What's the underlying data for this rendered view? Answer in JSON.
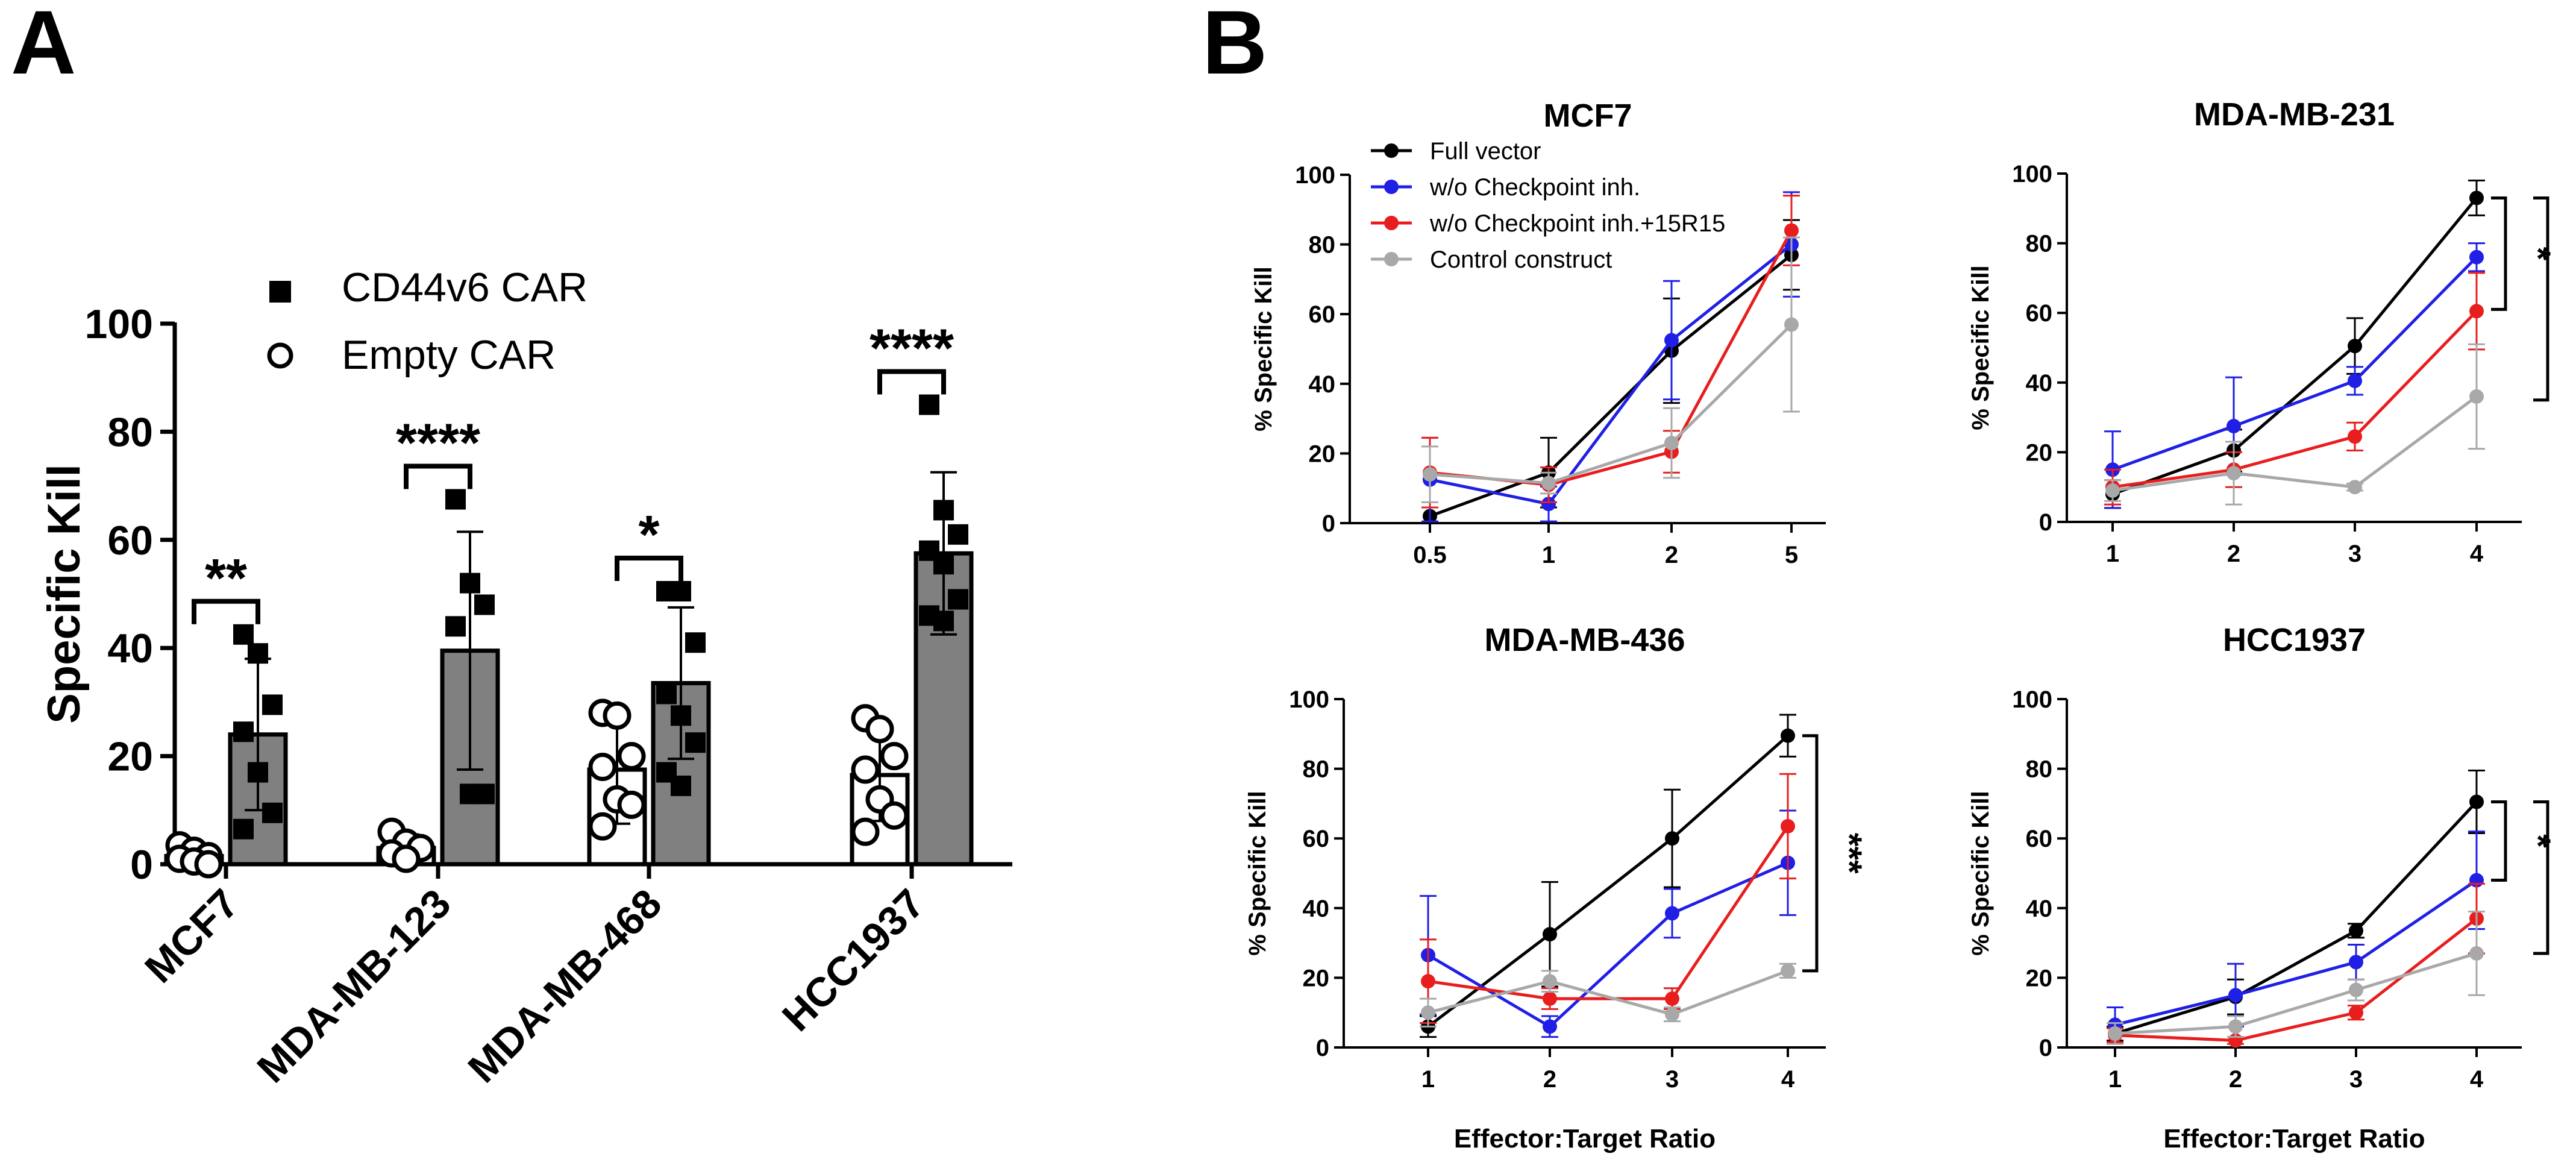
{
  "panels": {
    "A": {
      "label": "A"
    },
    "B": {
      "label": "B"
    }
  },
  "colors": {
    "full_vector": "#000000",
    "wo_checkpoint": "#1f1fe6",
    "wo_checkpoint_15r15": "#e81e1e",
    "control": "#a8a8a8",
    "cd44v6_bar": "#808080",
    "empty_bar": "#ffffff"
  },
  "chart_data": [
    {
      "panel": "A",
      "type": "bar",
      "ylabel": "Specific Kill",
      "ylim": [
        0,
        100
      ],
      "yticks": [
        "0",
        "20",
        "40",
        "60",
        "80",
        "100"
      ],
      "categories": [
        "MCF7",
        "MDA-MB-123",
        "MDA-MB-468",
        "HCC1937"
      ],
      "legend_position": "top",
      "series": [
        {
          "name": "CD44v6 CAR",
          "marker": "filled-square",
          "values": [
            24,
            39.5,
            33.5,
            57.5
          ],
          "error": [
            14,
            22,
            14,
            15
          ],
          "points": [
            [
              42.5,
              39,
              29.5,
              24.5,
              17,
              9.5,
              6.5
            ],
            [
              67.5,
              52,
              48,
              44,
              13,
              13
            ],
            [
              50.5,
              50.5,
              41,
              31.5,
              27.5,
              22.5,
              17,
              14.5
            ],
            [
              85,
              65.5,
              61,
              58,
              55.5,
              49,
              46,
              45
            ]
          ]
        },
        {
          "name": "Empty CAR",
          "marker": "open-circle",
          "values": [
            1.5,
            3,
            17.5,
            16.5
          ],
          "error": [
            1.5,
            2.5,
            10,
            8.5
          ],
          "points": [
            [
              3.5,
              2.5,
              1.5,
              1,
              0.5,
              0
            ],
            [
              6,
              4,
              3,
              2,
              1
            ],
            [
              28,
              27.5,
              20,
              18,
              12,
              11,
              7
            ],
            [
              27,
              25,
              20,
              17.5,
              12,
              9,
              6
            ]
          ]
        }
      ],
      "annotations": [
        {
          "category": "MCF7",
          "text": "**"
        },
        {
          "category": "MDA-MB-123",
          "text": "****"
        },
        {
          "category": "MDA-MB-468",
          "text": "*"
        },
        {
          "category": "HCC1937",
          "text": "****"
        }
      ]
    },
    {
      "panel": "B",
      "title": "MCF7",
      "type": "line",
      "ylabel": "% Specific Kill",
      "xlabel": "",
      "ylim": [
        0,
        100
      ],
      "yticks": [
        "0",
        "20",
        "40",
        "60",
        "80",
        "100"
      ],
      "x": [
        "0.5",
        "1",
        "2",
        "5"
      ],
      "series": [
        {
          "name": "Full vector",
          "values": [
            2,
            14.5,
            49.5,
            77
          ],
          "error": [
            0,
            10,
            15,
            10
          ]
        },
        {
          "name": "w/o Checkpoint inh.",
          "values": [
            12.5,
            5.5,
            52.5,
            80
          ],
          "error": [
            12,
            5,
            17,
            15
          ]
        },
        {
          "name": "w/o Checkpoint inh.+15R15",
          "values": [
            14.5,
            11,
            20.5,
            84
          ],
          "error": [
            10,
            5,
            6,
            10
          ]
        },
        {
          "name": "Control construct",
          "values": [
            14,
            11.5,
            23,
            57
          ],
          "error": [
            8,
            3,
            10,
            25
          ]
        }
      ],
      "legend_position": "top-left",
      "brackets": []
    },
    {
      "panel": "B",
      "title": "MDA-MB-231",
      "type": "line",
      "ylabel": "% Specific Kill",
      "xlabel": "",
      "ylim": [
        0,
        100
      ],
      "yticks": [
        "0",
        "20",
        "40",
        "60",
        "80",
        "100"
      ],
      "x": [
        "1",
        "2",
        "3",
        "4"
      ],
      "series": [
        {
          "name": "Full vector",
          "values": [
            8,
            20.5,
            50.5,
            93
          ],
          "error": [
            4,
            6,
            8,
            5
          ]
        },
        {
          "name": "w/o Checkpoint inh.",
          "values": [
            15,
            27.5,
            40.5,
            76
          ],
          "error": [
            11,
            14,
            4,
            4
          ]
        },
        {
          "name": "w/o Checkpoint inh.+15R15",
          "values": [
            10,
            15,
            24.5,
            60.5
          ],
          "error": [
            5,
            5,
            4,
            11
          ]
        },
        {
          "name": "Control construct",
          "values": [
            9,
            14,
            10,
            36
          ],
          "error": [
            3,
            9,
            1,
            15
          ]
        }
      ],
      "brackets": [
        {
          "from": 93,
          "to": 61,
          "text": "*"
        },
        {
          "from": 93,
          "to": 35,
          "text": "**"
        }
      ]
    },
    {
      "panel": "B",
      "title": "MDA-MB-436",
      "type": "line",
      "ylabel": "% Specific Kill",
      "xlabel": "Effector:Target Ratio",
      "ylim": [
        0,
        100
      ],
      "yticks": [
        "0",
        "20",
        "40",
        "60",
        "80",
        "100"
      ],
      "x": [
        "1",
        "2",
        "3",
        "4"
      ],
      "series": [
        {
          "name": "Full vector",
          "values": [
            6,
            32.5,
            60,
            89.5
          ],
          "error": [
            3,
            15,
            14,
            6
          ]
        },
        {
          "name": "w/o Checkpoint inh.",
          "values": [
            26.5,
            6,
            38.5,
            53
          ],
          "error": [
            17,
            3,
            7,
            15
          ]
        },
        {
          "name": "w/o Checkpoint inh.+15R15",
          "values": [
            19,
            14,
            14,
            63.5
          ],
          "error": [
            12,
            3,
            3,
            15
          ]
        },
        {
          "name": "Control construct",
          "values": [
            10,
            19,
            9.5,
            22
          ],
          "error": [
            4,
            3,
            2,
            2
          ]
        }
      ],
      "brackets": [
        {
          "from": 89.5,
          "to": 22,
          "text": "***"
        }
      ]
    },
    {
      "panel": "B",
      "title": "HCC1937",
      "type": "line",
      "ylabel": "% Specific Kill",
      "xlabel": "Effector:Target Ratio",
      "ylim": [
        0,
        100
      ],
      "yticks": [
        "0",
        "20",
        "40",
        "60",
        "80",
        "100"
      ],
      "x": [
        "1",
        "2",
        "3",
        "4"
      ],
      "series": [
        {
          "name": "Full vector",
          "values": [
            4,
            14.5,
            33.5,
            70.5
          ],
          "error": [
            2,
            5,
            2,
            9
          ]
        },
        {
          "name": "w/o Checkpoint inh.",
          "values": [
            6.5,
            15,
            24.5,
            48
          ],
          "error": [
            5,
            9,
            5,
            14
          ]
        },
        {
          "name": "w/o Checkpoint inh.+15R15",
          "values": [
            3.5,
            2,
            10,
            37
          ],
          "error": [
            2,
            1,
            2,
            10
          ]
        },
        {
          "name": "Control construct",
          "values": [
            4,
            6,
            16.5,
            27
          ],
          "error": [
            3,
            3,
            3,
            12
          ]
        }
      ],
      "brackets": [
        {
          "from": 70.5,
          "to": 48,
          "text": "*"
        },
        {
          "from": 70.5,
          "to": 27,
          "text": "***"
        }
      ]
    }
  ]
}
